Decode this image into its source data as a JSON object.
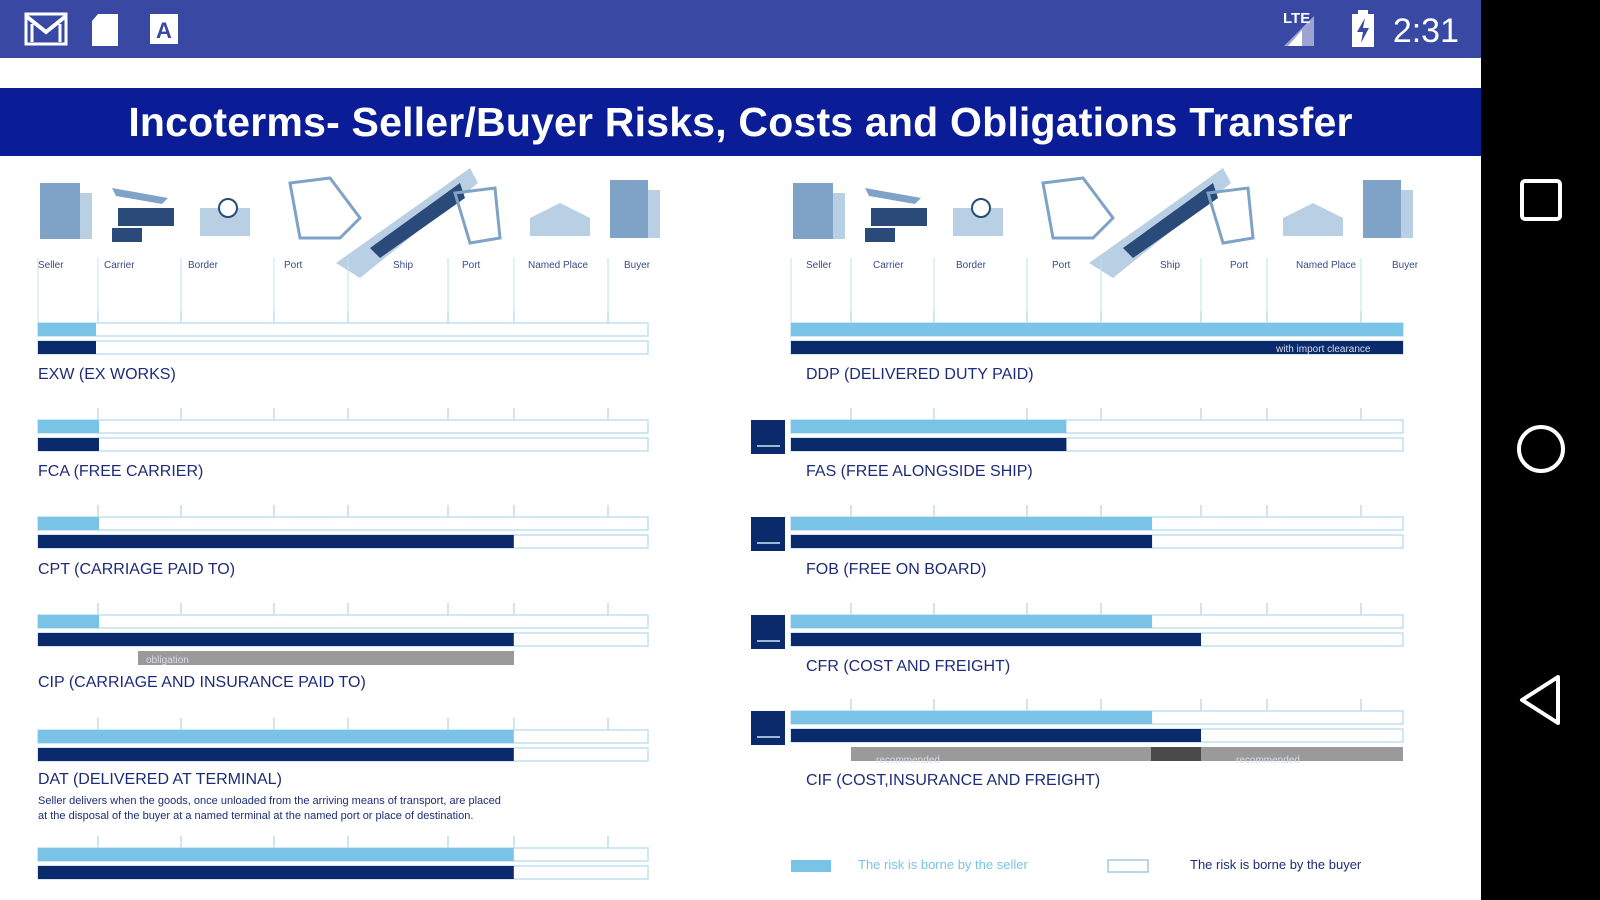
{
  "status_bar": {
    "time": "2:31",
    "network": "LTE",
    "icons": [
      "gmail-icon",
      "sd-card-icon",
      "font-app-icon",
      "signal-icon",
      "battery-charging-icon"
    ]
  },
  "document": {
    "title": "Incoterms- Seller/Buyer Risks, Costs and Obligations Transfer",
    "places": [
      "Seller",
      "Carrier",
      "Border",
      "Port",
      "Ship",
      "Port",
      "Named Place",
      "Buyer"
    ],
    "terms_left": [
      {
        "label": "EXW (EX WORKS)",
        "risk": 0.0,
        "cost": 0.0
      },
      {
        "label": "FCA (FREE CARRIER)",
        "risk": 0.1,
        "cost": 0.1
      },
      {
        "label": "CPT (CARRIAGE PAID TO)",
        "risk": 0.1,
        "cost": 0.78
      },
      {
        "label": "CIP (CARRIAGE AND INSURANCE PAID TO)",
        "risk": 0.1,
        "cost": 0.78,
        "note": "obligation"
      },
      {
        "label": "DAT (DELIVERED AT TERMINAL)",
        "risk": 0.78,
        "cost": 0.78
      },
      {
        "label": "",
        "risk": 0.78,
        "cost": 0.78
      }
    ],
    "dat_description_line1": "Seller delivers when the goods, once unloaded from the arriving means of transport, are placed",
    "dat_description_line2": "at the disposal of the buyer at a named terminal at the named port or place of destination.",
    "terms_right": [
      {
        "label": "DDP (DELIVERED DUTY PAID)",
        "risk": 1.0,
        "cost": 1.0,
        "note": "with import clearance"
      },
      {
        "label": "FAS (FREE ALONGSIDE SHIP)",
        "risk": 0.45,
        "cost": 0.45
      },
      {
        "label": "FOB (FREE ON BOARD)",
        "risk": 0.59,
        "cost": 0.59
      },
      {
        "label": "CFR (COST AND FREIGHT)",
        "risk": 0.59,
        "cost": 0.67
      },
      {
        "label": "CIF (COST,INSURANCE AND FREIGHT)",
        "risk": 0.59,
        "cost": 0.67,
        "note_left": "recommended",
        "note_right": "recommended"
      }
    ],
    "legend": {
      "seller": "The risk is borne by the seller",
      "buyer": "The risk is borne by the buyer"
    }
  },
  "navigation": {
    "buttons": [
      "recents-button",
      "home-button",
      "back-button"
    ]
  },
  "colors": {
    "status_bar": "#3949a3",
    "title_bar": "#0b1d96",
    "risk_seller": "#79c4e6",
    "cost_seller": "#0b2a6b",
    "obligation": "#9a9a9a"
  }
}
